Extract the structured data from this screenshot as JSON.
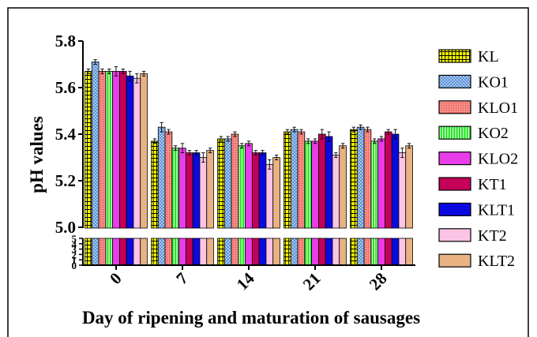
{
  "chart_data": {
    "type": "bar",
    "xlabel": "Day of ripening and maturation of sausages",
    "ylabel": "pH values",
    "categories": [
      "0",
      "7",
      "14",
      "21",
      "28"
    ],
    "y_axis_break": true,
    "ylim_upper": [
      5.0,
      5.8
    ],
    "yticks_upper": [
      "5.0",
      "5.2",
      "5.4",
      "5.6",
      "5.8"
    ],
    "ylim_lower": [
      0,
      5
    ],
    "yticks_lower": [
      "0",
      "1",
      "2",
      "3",
      "4",
      "5"
    ],
    "grid": false,
    "legend_position": "right",
    "series": [
      {
        "name": "KL",
        "color": "#ffff00",
        "accent": "#000000",
        "values": [
          5.67,
          5.37,
          5.38,
          5.41,
          5.42
        ],
        "errors": [
          0.01,
          0.01,
          0.01,
          0.01,
          0.01
        ]
      },
      {
        "name": "KO1",
        "color": "#a9c8ec",
        "accent": "#5b8fd6",
        "values": [
          5.71,
          5.43,
          5.38,
          5.42,
          5.43
        ],
        "errors": [
          0.01,
          0.02,
          0.01,
          0.01,
          0.01
        ]
      },
      {
        "name": "KLO1",
        "color": "#f7918a",
        "accent": "#e04848",
        "values": [
          5.67,
          5.41,
          5.4,
          5.41,
          5.42
        ],
        "errors": [
          0.01,
          0.01,
          0.01,
          0.01,
          0.01
        ]
      },
      {
        "name": "KO2",
        "color": "#19e619",
        "accent": "#ffffff",
        "values": [
          5.67,
          5.34,
          5.35,
          5.37,
          5.37
        ],
        "errors": [
          0.01,
          0.01,
          0.01,
          0.01,
          0.01
        ]
      },
      {
        "name": "KLO2",
        "color": "#e83de8",
        "values": [
          5.67,
          5.34,
          5.36,
          5.37,
          5.38
        ],
        "errors": [
          0.02,
          0.02,
          0.01,
          0.01,
          0.01
        ]
      },
      {
        "name": "KT1",
        "color": "#c40058",
        "values": [
          5.67,
          5.32,
          5.32,
          5.4,
          5.41
        ],
        "errors": [
          0.01,
          0.01,
          0.01,
          0.02,
          0.01
        ]
      },
      {
        "name": "KLT1",
        "color": "#0a0ae0",
        "values": [
          5.65,
          5.32,
          5.32,
          5.39,
          5.4
        ],
        "errors": [
          0.02,
          0.01,
          0.01,
          0.02,
          0.02
        ]
      },
      {
        "name": "KT2",
        "color": "#fbc4e4",
        "values": [
          5.64,
          5.3,
          5.27,
          5.31,
          5.32
        ],
        "errors": [
          0.02,
          0.02,
          0.02,
          0.01,
          0.02
        ]
      },
      {
        "name": "KLT2",
        "color": "#e8b282",
        "values": [
          5.66,
          5.33,
          5.3,
          5.35,
          5.35
        ],
        "errors": [
          0.01,
          0.01,
          0.01,
          0.01,
          0.01
        ]
      }
    ]
  }
}
